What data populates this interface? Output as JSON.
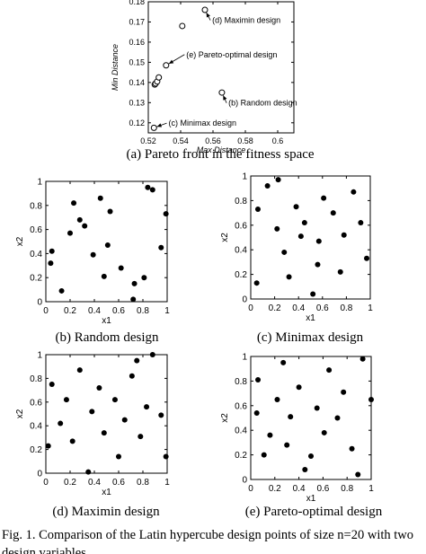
{
  "chart_data": [
    {
      "id": "a",
      "type": "scatter",
      "caption": "(a) Pareto front in the fitness space",
      "xlabel": "Max Distance",
      "ylabel": "Min Distance",
      "xlim": [
        0.52,
        0.61
      ],
      "ylim": [
        0.115,
        0.18
      ],
      "xticks": [
        "0.52",
        "0.54",
        "0.56",
        "0.58",
        "0.6"
      ],
      "xtick_values": [
        0.52,
        0.54,
        0.56,
        0.58,
        0.6
      ],
      "yticks": [
        "0.12",
        "0.13",
        "0.14",
        "0.15",
        "0.16",
        "0.17",
        "0.18"
      ],
      "ytick_values": [
        0.12,
        0.13,
        0.14,
        0.15,
        0.16,
        0.17,
        0.18
      ],
      "marker": "open-circle",
      "points": [
        {
          "x": 0.5235,
          "y": 0.1175
        },
        {
          "x": 0.524,
          "y": 0.139
        },
        {
          "x": 0.5245,
          "y": 0.1395
        },
        {
          "x": 0.5255,
          "y": 0.1405
        },
        {
          "x": 0.5265,
          "y": 0.1425
        },
        {
          "x": 0.531,
          "y": 0.1485
        },
        {
          "x": 0.541,
          "y": 0.168
        },
        {
          "x": 0.555,
          "y": 0.176
        },
        {
          "x": 0.5655,
          "y": 0.135
        }
      ],
      "annotations": [
        {
          "text": "(d) Maximin design",
          "point": {
            "x": 0.555,
            "y": 0.176
          },
          "label": {
            "x": 0.5595,
            "y": 0.1695
          }
        },
        {
          "text": "(e) Pareto-optimal design",
          "point": {
            "x": 0.531,
            "y": 0.1485
          },
          "label": {
            "x": 0.5435,
            "y": 0.1525
          }
        },
        {
          "text": "(b) Random design",
          "point": {
            "x": 0.5655,
            "y": 0.135
          },
          "label": {
            "x": 0.5695,
            "y": 0.1285
          }
        },
        {
          "text": "(c) Minimax design",
          "point": {
            "x": 0.5235,
            "y": 0.1175
          },
          "label": {
            "x": 0.5325,
            "y": 0.1185
          }
        }
      ]
    },
    {
      "id": "b",
      "type": "scatter",
      "caption": "(b) Random design",
      "xlabel": "x1",
      "ylabel": "x2",
      "xlim": [
        0,
        1
      ],
      "ylim": [
        0,
        1
      ],
      "xticks": [
        "0",
        "0.2",
        "0.4",
        "0.6",
        "0.8",
        "1"
      ],
      "yticks": [
        "0",
        "0.2",
        "0.4",
        "0.6",
        "0.8",
        "1"
      ],
      "marker": "filled-circle",
      "points": [
        {
          "x": 0.23,
          "y": 0.82
        },
        {
          "x": 0.28,
          "y": 0.68
        },
        {
          "x": 0.32,
          "y": 0.63
        },
        {
          "x": 0.45,
          "y": 0.86
        },
        {
          "x": 0.39,
          "y": 0.39
        },
        {
          "x": 0.05,
          "y": 0.42
        },
        {
          "x": 0.04,
          "y": 0.32
        },
        {
          "x": 0.13,
          "y": 0.09
        },
        {
          "x": 0.48,
          "y": 0.21
        },
        {
          "x": 0.51,
          "y": 0.47
        },
        {
          "x": 0.53,
          "y": 0.75
        },
        {
          "x": 0.62,
          "y": 0.28
        },
        {
          "x": 0.73,
          "y": 0.15
        },
        {
          "x": 0.72,
          "y": 0.02
        },
        {
          "x": 0.81,
          "y": 0.2
        },
        {
          "x": 0.84,
          "y": 0.95
        },
        {
          "x": 0.88,
          "y": 0.93
        },
        {
          "x": 0.99,
          "y": 0.73
        },
        {
          "x": 0.95,
          "y": 0.45
        },
        {
          "x": 0.2,
          "y": 0.57
        }
      ]
    },
    {
      "id": "c",
      "type": "scatter",
      "caption": "(c) Minimax design",
      "xlabel": "x1",
      "ylabel": "x2",
      "xlim": [
        0,
        1
      ],
      "ylim": [
        0,
        1
      ],
      "xticks": [
        "0",
        "0.2",
        "0.4",
        "0.6",
        "0.8",
        "1"
      ],
      "yticks": [
        "0",
        "0.2",
        "0.4",
        "0.6",
        "0.8",
        "1"
      ],
      "marker": "filled-circle",
      "points": [
        {
          "x": 0.06,
          "y": 0.73
        },
        {
          "x": 0.14,
          "y": 0.92
        },
        {
          "x": 0.23,
          "y": 0.97
        },
        {
          "x": 0.22,
          "y": 0.57
        },
        {
          "x": 0.28,
          "y": 0.38
        },
        {
          "x": 0.32,
          "y": 0.18
        },
        {
          "x": 0.38,
          "y": 0.75
        },
        {
          "x": 0.42,
          "y": 0.51
        },
        {
          "x": 0.45,
          "y": 0.62
        },
        {
          "x": 0.52,
          "y": 0.04
        },
        {
          "x": 0.57,
          "y": 0.47
        },
        {
          "x": 0.56,
          "y": 0.28
        },
        {
          "x": 0.61,
          "y": 0.82
        },
        {
          "x": 0.69,
          "y": 0.7
        },
        {
          "x": 0.75,
          "y": 0.22
        },
        {
          "x": 0.78,
          "y": 0.52
        },
        {
          "x": 0.86,
          "y": 0.87
        },
        {
          "x": 0.92,
          "y": 0.62
        },
        {
          "x": 0.97,
          "y": 0.33
        },
        {
          "x": 0.05,
          "y": 0.13
        }
      ]
    },
    {
      "id": "d",
      "type": "scatter",
      "caption": "(d) Maximin design",
      "xlabel": "x1",
      "ylabel": "x2",
      "xlim": [
        0,
        1
      ],
      "ylim": [
        0,
        1
      ],
      "xticks": [
        "0",
        "0.2",
        "0.4",
        "0.6",
        "0.8",
        "1"
      ],
      "yticks": [
        "0",
        "0.2",
        "0.4",
        "0.6",
        "0.8",
        "1"
      ],
      "marker": "filled-circle",
      "points": [
        {
          "x": 0.05,
          "y": 0.75
        },
        {
          "x": 0.12,
          "y": 0.42
        },
        {
          "x": 0.17,
          "y": 0.62
        },
        {
          "x": 0.22,
          "y": 0.27
        },
        {
          "x": 0.28,
          "y": 0.87
        },
        {
          "x": 0.35,
          "y": 0.01
        },
        {
          "x": 0.38,
          "y": 0.52
        },
        {
          "x": 0.44,
          "y": 0.72
        },
        {
          "x": 0.48,
          "y": 0.34
        },
        {
          "x": 0.57,
          "y": 0.62
        },
        {
          "x": 0.6,
          "y": 0.14
        },
        {
          "x": 0.65,
          "y": 0.45
        },
        {
          "x": 0.71,
          "y": 0.82
        },
        {
          "x": 0.75,
          "y": 0.95
        },
        {
          "x": 0.78,
          "y": 0.31
        },
        {
          "x": 0.83,
          "y": 0.56
        },
        {
          "x": 0.88,
          "y": 1.0
        },
        {
          "x": 0.95,
          "y": 0.49
        },
        {
          "x": 0.99,
          "y": 0.14
        },
        {
          "x": 0.02,
          "y": 0.23
        }
      ]
    },
    {
      "id": "e",
      "type": "scatter",
      "caption": "(e) Pareto-optimal design",
      "xlabel": "x1",
      "ylabel": "x2",
      "xlim": [
        0,
        1
      ],
      "ylim": [
        0,
        1
      ],
      "xticks": [
        "0",
        "0.2",
        "0.4",
        "0.6",
        "0.8",
        "1"
      ],
      "yticks": [
        "0",
        "0.2",
        "0.4",
        "0.6",
        "0.8",
        "1"
      ],
      "marker": "filled-circle",
      "points": [
        {
          "x": 0.05,
          "y": 0.54
        },
        {
          "x": 0.06,
          "y": 0.81
        },
        {
          "x": 0.11,
          "y": 0.2
        },
        {
          "x": 0.16,
          "y": 0.36
        },
        {
          "x": 0.22,
          "y": 0.65
        },
        {
          "x": 0.27,
          "y": 0.95
        },
        {
          "x": 0.3,
          "y": 0.28
        },
        {
          "x": 0.33,
          "y": 0.51
        },
        {
          "x": 0.4,
          "y": 0.75
        },
        {
          "x": 0.45,
          "y": 0.08
        },
        {
          "x": 0.5,
          "y": 0.19
        },
        {
          "x": 0.55,
          "y": 0.58
        },
        {
          "x": 0.61,
          "y": 0.38
        },
        {
          "x": 0.65,
          "y": 0.89
        },
        {
          "x": 0.72,
          "y": 0.5
        },
        {
          "x": 0.77,
          "y": 0.71
        },
        {
          "x": 0.84,
          "y": 0.25
        },
        {
          "x": 0.89,
          "y": 0.04
        },
        {
          "x": 0.93,
          "y": 0.98
        },
        {
          "x": 1.0,
          "y": 0.65
        }
      ]
    }
  ],
  "figure_caption": {
    "line1": "Fig. 1. Comparison of the Latin hypercube design points of size n=20 with two",
    "line2": "design variables"
  }
}
